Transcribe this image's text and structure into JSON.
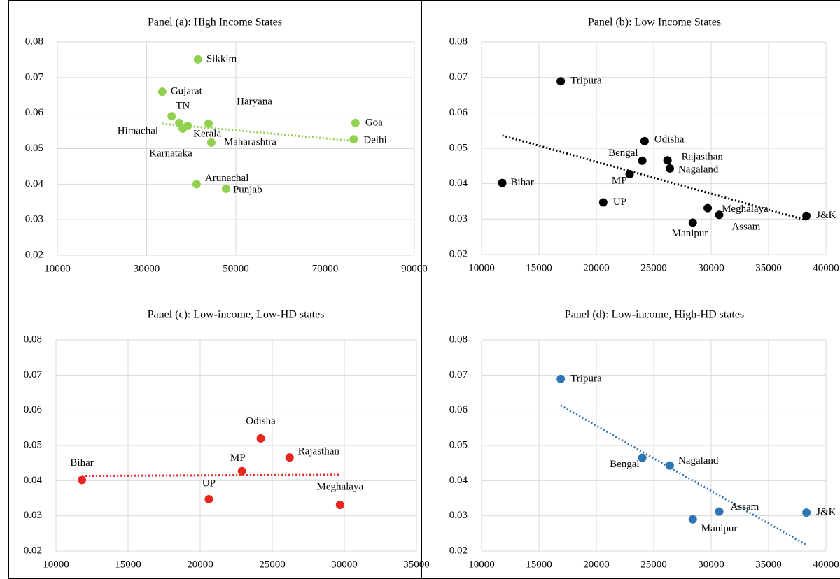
{
  "chart_data": [
    {
      "type": "scatter",
      "title": "Panel (a): High Income States",
      "point_labels": [
        "Sikkim",
        "Gujarat",
        "TN",
        "Himachal",
        "Kerala",
        "Karnataka",
        "Haryana",
        "Maharashtra",
        "Goa",
        "Delhi",
        "Arunachal",
        "Punjab"
      ],
      "x": [
        41500,
        33500,
        35600,
        37300,
        39200,
        38100,
        43900,
        44500,
        76800,
        76400,
        41200,
        47800
      ],
      "values": [
        0.0751,
        0.066,
        0.0591,
        0.0572,
        0.0564,
        0.0556,
        0.057,
        0.0517,
        0.0572,
        0.0526,
        0.04,
        0.0387
      ],
      "color": "#92d050",
      "trendline": true,
      "xlim": [
        10000,
        90000
      ],
      "xticks": [
        10000,
        30000,
        50000,
        70000,
        90000
      ],
      "ylim": [
        0.02,
        0.08
      ],
      "yticks": [
        0.02,
        0.03,
        0.04,
        0.05,
        0.06,
        0.07,
        0.08
      ],
      "grid": true
    },
    {
      "type": "scatter",
      "title": "Panel (b): Low Income States",
      "point_labels": [
        "Tripura",
        "Bihar",
        "Odisha",
        "Bengal",
        "Rajasthan",
        "Nagaland",
        "MP",
        "UP",
        "Meghalaya",
        "Assam",
        "Manipur",
        "J&K"
      ],
      "x": [
        16900,
        11800,
        24200,
        24000,
        26200,
        26400,
        22900,
        20600,
        29700,
        30700,
        28400,
        38300
      ],
      "values": [
        0.0689,
        0.0402,
        0.052,
        0.0465,
        0.0466,
        0.0443,
        0.0427,
        0.0347,
        0.0331,
        0.0312,
        0.029,
        0.0309
      ],
      "color": "#000000",
      "trendline": true,
      "xlim": [
        10000,
        40000
      ],
      "xticks": [
        10000,
        15000,
        20000,
        25000,
        30000,
        35000,
        40000
      ],
      "ylim": [
        0.02,
        0.08
      ],
      "yticks": [
        0.02,
        0.03,
        0.04,
        0.05,
        0.06,
        0.07,
        0.08
      ],
      "grid": true
    },
    {
      "type": "scatter",
      "title": "Panel (c): Low-income, Low-HD states",
      "point_labels": [
        "Bihar",
        "UP",
        "MP",
        "Odisha",
        "Rajasthan",
        "Meghalaya"
      ],
      "x": [
        11800,
        20600,
        22900,
        24200,
        26200,
        29700
      ],
      "values": [
        0.0402,
        0.0347,
        0.0427,
        0.052,
        0.0466,
        0.0331
      ],
      "color": "#e8261f",
      "trendline": true,
      "xlim": [
        10000,
        35000
      ],
      "xticks": [
        10000,
        15000,
        20000,
        25000,
        30000,
        35000
      ],
      "ylim": [
        0.02,
        0.08
      ],
      "yticks": [
        0.02,
        0.03,
        0.04,
        0.05,
        0.06,
        0.07,
        0.08
      ],
      "grid": true
    },
    {
      "type": "scatter",
      "title": "Panel (d): Low-income, High-HD states",
      "point_labels": [
        "Tripura",
        "Bengal",
        "Nagaland",
        "Assam",
        "Manipur",
        "J&K"
      ],
      "x": [
        16900,
        24000,
        26400,
        30700,
        28400,
        38300
      ],
      "values": [
        0.0689,
        0.0465,
        0.0443,
        0.0312,
        0.029,
        0.0309
      ],
      "color": "#2e75b6",
      "trendline": true,
      "xlim": [
        10000,
        40000
      ],
      "xticks": [
        10000,
        15000,
        20000,
        25000,
        30000,
        35000,
        40000
      ],
      "ylim": [
        0.02,
        0.08
      ],
      "yticks": [
        0.02,
        0.03,
        0.04,
        0.05,
        0.06,
        0.07,
        0.08
      ],
      "grid": true
    }
  ]
}
